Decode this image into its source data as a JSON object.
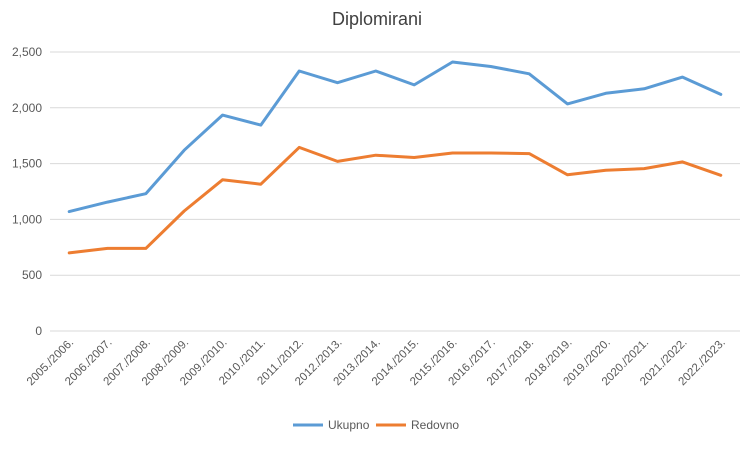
{
  "chart_data": {
    "type": "line",
    "title": "Diplomirani",
    "xlabel": "",
    "ylabel": "",
    "ylim": [
      0,
      2500
    ],
    "yticks": [
      0,
      500,
      1000,
      1500,
      2000,
      2500
    ],
    "ytick_labels": [
      "0",
      "500",
      "1,000",
      "1,500",
      "2,000",
      "2,500"
    ],
    "grid": true,
    "legend_position": "bottom",
    "categories": [
      "2005./2006.",
      "2006./2007.",
      "2007./2008.",
      "2008./2009.",
      "2009./2010.",
      "2010./2011.",
      "2011./2012.",
      "2012./2013.",
      "2013./2014.",
      "2014./2015.",
      "2015./2016.",
      "2016./2017.",
      "2017./2018.",
      "2018./2019.",
      "2019./2020.",
      "2020./2021.",
      "2021./2022.",
      "2022./2023."
    ],
    "series": [
      {
        "name": "Ukupno",
        "color": "#5b9bd5",
        "values": [
          1070,
          1155,
          1230,
          1620,
          1935,
          1845,
          2330,
          2225,
          2330,
          2205,
          2410,
          2370,
          2305,
          2035,
          2130,
          2170,
          2275,
          2120
        ]
      },
      {
        "name": "Redovno",
        "color": "#ed7d31",
        "values": [
          700,
          740,
          740,
          1075,
          1355,
          1315,
          1645,
          1520,
          1575,
          1555,
          1595,
          1595,
          1590,
          1400,
          1440,
          1455,
          1515,
          1395
        ]
      }
    ]
  }
}
